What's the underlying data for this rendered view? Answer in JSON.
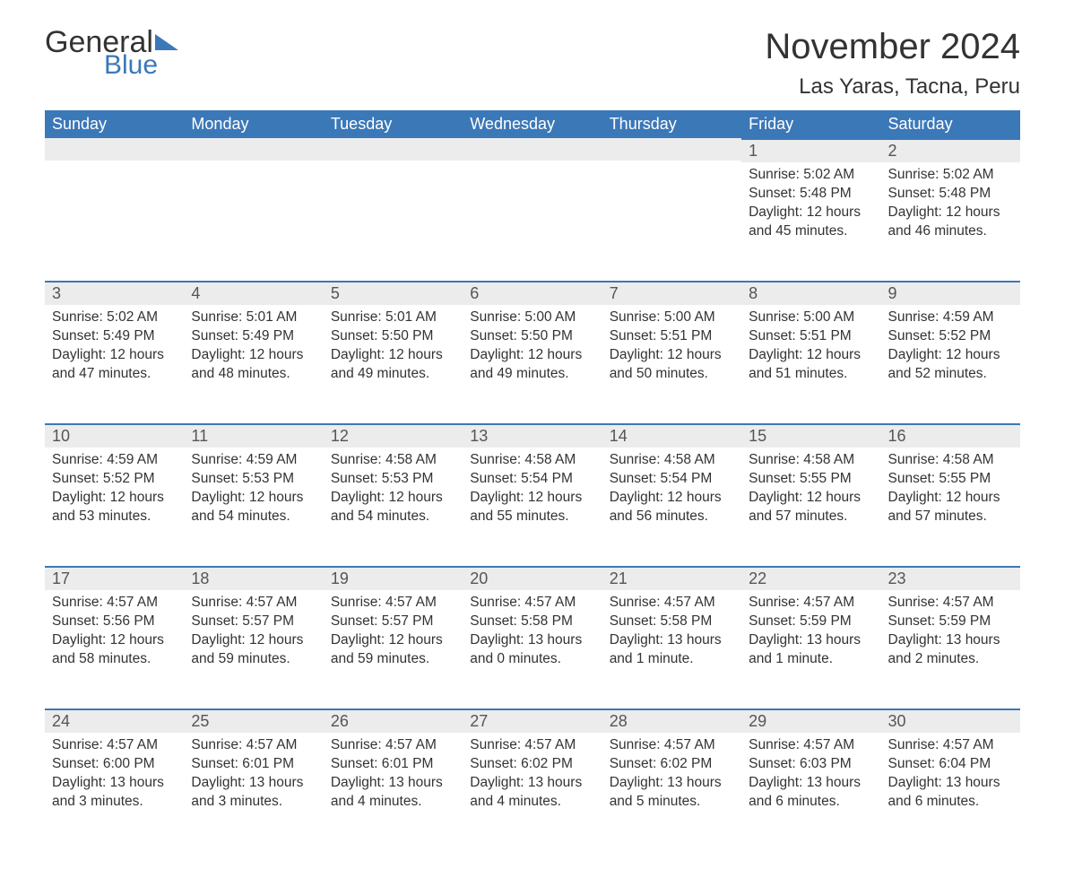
{
  "logo": {
    "word1": "General",
    "word2": "Blue"
  },
  "title": "November 2024",
  "location": "Las Yaras, Tacna, Peru",
  "colors": {
    "header_bg": "#3b78b8",
    "header_text": "#ffffff",
    "daynum_bg": "#ececec",
    "border": "#3b78b8",
    "body_bg": "#ffffff",
    "text": "#333333"
  },
  "weekdays": [
    "Sunday",
    "Monday",
    "Tuesday",
    "Wednesday",
    "Thursday",
    "Friday",
    "Saturday"
  ],
  "weeks": [
    [
      null,
      null,
      null,
      null,
      null,
      {
        "n": "1",
        "sr": "Sunrise: 5:02 AM",
        "ss": "Sunset: 5:48 PM",
        "d1": "Daylight: 12 hours",
        "d2": "and 45 minutes."
      },
      {
        "n": "2",
        "sr": "Sunrise: 5:02 AM",
        "ss": "Sunset: 5:48 PM",
        "d1": "Daylight: 12 hours",
        "d2": "and 46 minutes."
      }
    ],
    [
      {
        "n": "3",
        "sr": "Sunrise: 5:02 AM",
        "ss": "Sunset: 5:49 PM",
        "d1": "Daylight: 12 hours",
        "d2": "and 47 minutes."
      },
      {
        "n": "4",
        "sr": "Sunrise: 5:01 AM",
        "ss": "Sunset: 5:49 PM",
        "d1": "Daylight: 12 hours",
        "d2": "and 48 minutes."
      },
      {
        "n": "5",
        "sr": "Sunrise: 5:01 AM",
        "ss": "Sunset: 5:50 PM",
        "d1": "Daylight: 12 hours",
        "d2": "and 49 minutes."
      },
      {
        "n": "6",
        "sr": "Sunrise: 5:00 AM",
        "ss": "Sunset: 5:50 PM",
        "d1": "Daylight: 12 hours",
        "d2": "and 49 minutes."
      },
      {
        "n": "7",
        "sr": "Sunrise: 5:00 AM",
        "ss": "Sunset: 5:51 PM",
        "d1": "Daylight: 12 hours",
        "d2": "and 50 minutes."
      },
      {
        "n": "8",
        "sr": "Sunrise: 5:00 AM",
        "ss": "Sunset: 5:51 PM",
        "d1": "Daylight: 12 hours",
        "d2": "and 51 minutes."
      },
      {
        "n": "9",
        "sr": "Sunrise: 4:59 AM",
        "ss": "Sunset: 5:52 PM",
        "d1": "Daylight: 12 hours",
        "d2": "and 52 minutes."
      }
    ],
    [
      {
        "n": "10",
        "sr": "Sunrise: 4:59 AM",
        "ss": "Sunset: 5:52 PM",
        "d1": "Daylight: 12 hours",
        "d2": "and 53 minutes."
      },
      {
        "n": "11",
        "sr": "Sunrise: 4:59 AM",
        "ss": "Sunset: 5:53 PM",
        "d1": "Daylight: 12 hours",
        "d2": "and 54 minutes."
      },
      {
        "n": "12",
        "sr": "Sunrise: 4:58 AM",
        "ss": "Sunset: 5:53 PM",
        "d1": "Daylight: 12 hours",
        "d2": "and 54 minutes."
      },
      {
        "n": "13",
        "sr": "Sunrise: 4:58 AM",
        "ss": "Sunset: 5:54 PM",
        "d1": "Daylight: 12 hours",
        "d2": "and 55 minutes."
      },
      {
        "n": "14",
        "sr": "Sunrise: 4:58 AM",
        "ss": "Sunset: 5:54 PM",
        "d1": "Daylight: 12 hours",
        "d2": "and 56 minutes."
      },
      {
        "n": "15",
        "sr": "Sunrise: 4:58 AM",
        "ss": "Sunset: 5:55 PM",
        "d1": "Daylight: 12 hours",
        "d2": "and 57 minutes."
      },
      {
        "n": "16",
        "sr": "Sunrise: 4:58 AM",
        "ss": "Sunset: 5:55 PM",
        "d1": "Daylight: 12 hours",
        "d2": "and 57 minutes."
      }
    ],
    [
      {
        "n": "17",
        "sr": "Sunrise: 4:57 AM",
        "ss": "Sunset: 5:56 PM",
        "d1": "Daylight: 12 hours",
        "d2": "and 58 minutes."
      },
      {
        "n": "18",
        "sr": "Sunrise: 4:57 AM",
        "ss": "Sunset: 5:57 PM",
        "d1": "Daylight: 12 hours",
        "d2": "and 59 minutes."
      },
      {
        "n": "19",
        "sr": "Sunrise: 4:57 AM",
        "ss": "Sunset: 5:57 PM",
        "d1": "Daylight: 12 hours",
        "d2": "and 59 minutes."
      },
      {
        "n": "20",
        "sr": "Sunrise: 4:57 AM",
        "ss": "Sunset: 5:58 PM",
        "d1": "Daylight: 13 hours",
        "d2": "and 0 minutes."
      },
      {
        "n": "21",
        "sr": "Sunrise: 4:57 AM",
        "ss": "Sunset: 5:58 PM",
        "d1": "Daylight: 13 hours",
        "d2": "and 1 minute."
      },
      {
        "n": "22",
        "sr": "Sunrise: 4:57 AM",
        "ss": "Sunset: 5:59 PM",
        "d1": "Daylight: 13 hours",
        "d2": "and 1 minute."
      },
      {
        "n": "23",
        "sr": "Sunrise: 4:57 AM",
        "ss": "Sunset: 5:59 PM",
        "d1": "Daylight: 13 hours",
        "d2": "and 2 minutes."
      }
    ],
    [
      {
        "n": "24",
        "sr": "Sunrise: 4:57 AM",
        "ss": "Sunset: 6:00 PM",
        "d1": "Daylight: 13 hours",
        "d2": "and 3 minutes."
      },
      {
        "n": "25",
        "sr": "Sunrise: 4:57 AM",
        "ss": "Sunset: 6:01 PM",
        "d1": "Daylight: 13 hours",
        "d2": "and 3 minutes."
      },
      {
        "n": "26",
        "sr": "Sunrise: 4:57 AM",
        "ss": "Sunset: 6:01 PM",
        "d1": "Daylight: 13 hours",
        "d2": "and 4 minutes."
      },
      {
        "n": "27",
        "sr": "Sunrise: 4:57 AM",
        "ss": "Sunset: 6:02 PM",
        "d1": "Daylight: 13 hours",
        "d2": "and 4 minutes."
      },
      {
        "n": "28",
        "sr": "Sunrise: 4:57 AM",
        "ss": "Sunset: 6:02 PM",
        "d1": "Daylight: 13 hours",
        "d2": "and 5 minutes."
      },
      {
        "n": "29",
        "sr": "Sunrise: 4:57 AM",
        "ss": "Sunset: 6:03 PM",
        "d1": "Daylight: 13 hours",
        "d2": "and 6 minutes."
      },
      {
        "n": "30",
        "sr": "Sunrise: 4:57 AM",
        "ss": "Sunset: 6:04 PM",
        "d1": "Daylight: 13 hours",
        "d2": "and 6 minutes."
      }
    ]
  ]
}
